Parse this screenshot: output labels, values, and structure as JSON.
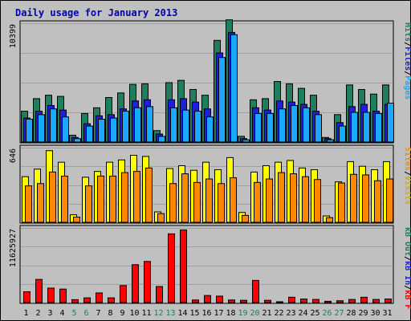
{
  "chart_data": {
    "type": "bar",
    "title": "Daily usage for January 2013",
    "days": [
      "1",
      "2",
      "3",
      "4",
      "5",
      "6",
      "7",
      "8",
      "9",
      "10",
      "11",
      "12",
      "13",
      "14",
      "15",
      "16",
      "17",
      "18",
      "19",
      "20",
      "21",
      "22",
      "23",
      "24",
      "25",
      "26",
      "27",
      "28",
      "29",
      "30",
      "31"
    ],
    "weekend_days": [
      "5",
      "6",
      "12",
      "13",
      "19",
      "20",
      "26",
      "27"
    ],
    "panels": [
      {
        "id": "pages_files_hits",
        "max_label": "10399",
        "max_value": 10399,
        "series": [
          {
            "name": "Hits",
            "color": "#1e7e5e",
            "values": [
              2700,
              3800,
              4100,
              4000,
              600,
              2500,
              3000,
              3900,
              4300,
              5050,
              5100,
              1000,
              5200,
              5400,
              4600,
              4100,
              8900,
              10700,
              500,
              3700,
              3800,
              5300,
              5100,
              4700,
              4100,
              400,
              2400,
              5000,
              4600,
              4200,
              5000
            ]
          },
          {
            "name": "Files",
            "color": "#1e1edc",
            "values": [
              2100,
              2700,
              3200,
              2800,
              400,
              1600,
              2300,
              2400,
              2900,
              3600,
              3700,
              700,
              3700,
              3800,
              3500,
              2900,
              7800,
              9600,
              300,
              3000,
              2800,
              3600,
              3500,
              3300,
              2700,
              300,
              1700,
              3100,
              3300,
              2700,
              3300
            ]
          },
          {
            "name": "Pages",
            "color": "#19aaff",
            "values": [
              2000,
              2400,
              2900,
              2200,
              300,
              1400,
              2000,
              2100,
              2700,
              3000,
              3100,
              500,
              3000,
              2800,
              2700,
              2200,
              7400,
              9400,
              200,
              2500,
              2500,
              2900,
              3200,
              3000,
              2400,
              200,
              1400,
              2600,
              2600,
              2500,
              3400
            ]
          }
        ],
        "side_labels": [
          {
            "text": "Pages",
            "color": "#19aaff"
          },
          {
            "text": "Files",
            "color": "#1e1edc"
          },
          {
            "text": "Hits",
            "color": "#1e7e5e"
          }
        ]
      },
      {
        "id": "visits_sites",
        "max_label": "646",
        "max_value": 646,
        "series": [
          {
            "name": "Visits",
            "color": "#ffff00",
            "values": [
              395,
              460,
              620,
              520,
              65,
              390,
              440,
              520,
              540,
              580,
              570,
              90,
              465,
              490,
              450,
              520,
              455,
              560,
              85,
              435,
              490,
              520,
              535,
              470,
              455,
              55,
              350,
              525,
              485,
              455,
              525
            ]
          },
          {
            "name": "Sites",
            "color": "#ff8800",
            "values": [
              315,
              335,
              435,
              400,
              45,
              315,
              400,
              400,
              430,
              440,
              470,
              75,
              335,
              420,
              345,
              375,
              335,
              385,
              60,
              345,
              375,
              430,
              420,
              395,
              370,
              40,
              340,
              415,
              410,
              360,
              375
            ]
          }
        ],
        "side_labels": [
          {
            "text": "Visits",
            "color": "#c8b400"
          },
          {
            "text": "Sites",
            "color": "#ff8800"
          }
        ]
      },
      {
        "id": "kbytes",
        "max_label": "11625927",
        "max_value": 11625927,
        "series": [
          {
            "name": "KBytes",
            "color": "#ff0000",
            "values": [
              1680000,
              3600000,
              2250000,
              2100000,
              450000,
              730000,
              1500000,
              730000,
              2650000,
              5900000,
              6400000,
              2500000,
              10700000,
              11300000,
              400000,
              1100000,
              1000000,
              400000,
              350000,
              3450000,
              350000,
              100000,
              830000,
              550000,
              480000,
              200000,
              280000,
              480000,
              830000,
              480000,
              550000
            ]
          }
        ],
        "side_labels": [
          {
            "text": "kB F",
            "color": "#ff0000"
          },
          {
            "text": "kB In",
            "color": "#1e1edc"
          },
          {
            "text": "kB Out",
            "color": "#1e7e5e"
          }
        ]
      }
    ],
    "colors": {
      "background": "#c0c0c0",
      "grid": "#a0a0a0",
      "title": "#0000b0",
      "weekday_label": "#000000",
      "weekend_label": "#1e7e5e"
    }
  }
}
